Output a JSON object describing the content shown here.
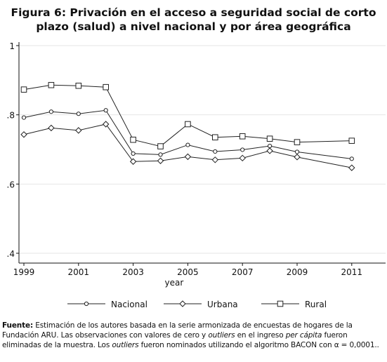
{
  "title": {
    "line1": "Figura  6: Privación en el acceso a seguridad social de corto",
    "line2": "plazo (salud) a nivel nacional y por área geográfica"
  },
  "chart_data": {
    "type": "line",
    "xlabel": "year",
    "ylabel": "",
    "x": [
      1999,
      2000,
      2001,
      2002,
      2003,
      2004,
      2005,
      2006,
      2007,
      2008,
      2009,
      2011
    ],
    "xticks": [
      1999,
      2001,
      2003,
      2005,
      2007,
      2009,
      2011
    ],
    "xtick_labels": [
      "1999",
      "2001",
      "2003",
      "2005",
      "2007",
      "2009",
      "2011"
    ],
    "xlim": [
      1999,
      2011.7
    ],
    "yticks": [
      0.4,
      0.6,
      0.8,
      1.0
    ],
    "ytick_labels": [
      ".4",
      ".6",
      ".8",
      "1"
    ],
    "ylim": [
      0.4,
      1.0
    ],
    "grid": true,
    "legend_position": "bottom",
    "series": [
      {
        "name": "Nacional",
        "marker": "circle",
        "values": [
          0.792,
          0.809,
          0.803,
          0.813,
          0.688,
          0.685,
          0.713,
          0.694,
          0.699,
          0.71,
          0.693,
          0.673
        ]
      },
      {
        "name": "Urbana",
        "marker": "diamond",
        "values": [
          0.743,
          0.762,
          0.755,
          0.773,
          0.665,
          0.667,
          0.679,
          0.67,
          0.675,
          0.696,
          0.678,
          0.647
        ]
      },
      {
        "name": "Rural",
        "marker": "square",
        "values": [
          0.873,
          0.886,
          0.884,
          0.88,
          0.728,
          0.709,
          0.773,
          0.735,
          0.738,
          0.731,
          0.721,
          0.725
        ]
      }
    ],
    "colors": {
      "line": "#222222",
      "grid": "#e6e6e6",
      "axis": "#111111"
    }
  },
  "footnote": {
    "label": "Fuente:",
    "text1": " Estimación de los autores basada en la serie armonizada de encuestas de hogares de la Fundación ARU. Las observaciones con valores de cero y ",
    "italic1": "outliers",
    "text2": " en el ingreso ",
    "italic2": "per cápita",
    "text3": " fueron eliminadas de la muestra. Los ",
    "italic3": "outliers",
    "text4": " fueron nominados utilizando  el algoritmo BACON con α = 0,0001.."
  }
}
